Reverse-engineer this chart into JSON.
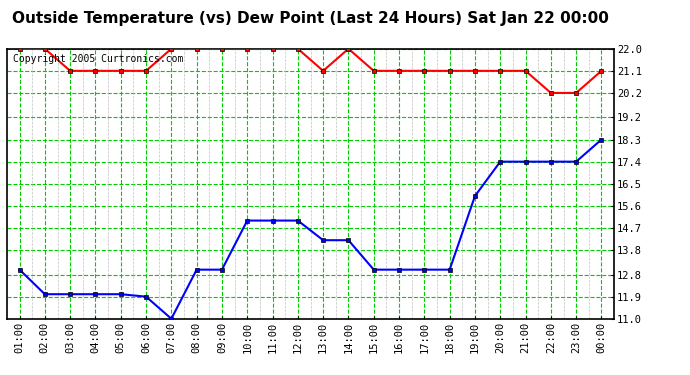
{
  "title": "Outside Temperature (vs) Dew Point (Last 24 Hours) Sat Jan 22 00:00",
  "copyright": "Copyright 2005 Curtronics.com",
  "x_labels": [
    "01:00",
    "02:00",
    "03:00",
    "04:00",
    "05:00",
    "06:00",
    "07:00",
    "08:00",
    "09:00",
    "10:00",
    "11:00",
    "12:00",
    "13:00",
    "14:00",
    "15:00",
    "16:00",
    "17:00",
    "18:00",
    "19:00",
    "20:00",
    "21:00",
    "22:00",
    "23:00",
    "00:00"
  ],
  "x_values": [
    1,
    2,
    3,
    4,
    5,
    6,
    7,
    8,
    9,
    10,
    11,
    12,
    13,
    14,
    15,
    16,
    17,
    18,
    19,
    20,
    21,
    22,
    23,
    24
  ],
  "red_data": [
    22.0,
    22.0,
    21.1,
    21.1,
    21.1,
    21.1,
    22.0,
    22.0,
    22.0,
    22.0,
    22.0,
    22.0,
    21.1,
    22.0,
    21.1,
    21.1,
    21.1,
    21.1,
    21.1,
    21.1,
    21.1,
    20.2,
    20.2,
    21.1
  ],
  "blue_data": [
    13.0,
    12.0,
    12.0,
    12.0,
    12.0,
    11.9,
    11.0,
    13.0,
    13.0,
    15.0,
    15.0,
    15.0,
    14.2,
    14.2,
    13.0,
    13.0,
    13.0,
    13.0,
    16.0,
    17.4,
    17.4,
    17.4,
    17.4,
    18.3
  ],
  "ylim_min": 11.0,
  "ylim_max": 22.0,
  "yticks": [
    11.0,
    11.9,
    12.8,
    13.8,
    14.7,
    15.6,
    16.5,
    17.4,
    18.3,
    19.2,
    20.2,
    21.1,
    22.0
  ],
  "bg_color": "#ffffff",
  "grid_color_dashed": "#00cc00",
  "grid_color_minor_v": "#c0c0c0",
  "red_line_color": "#ff0000",
  "blue_line_color": "#0000ff",
  "title_fontsize": 11,
  "copyright_fontsize": 7,
  "tick_fontsize": 7.5,
  "border_color": "#000000"
}
